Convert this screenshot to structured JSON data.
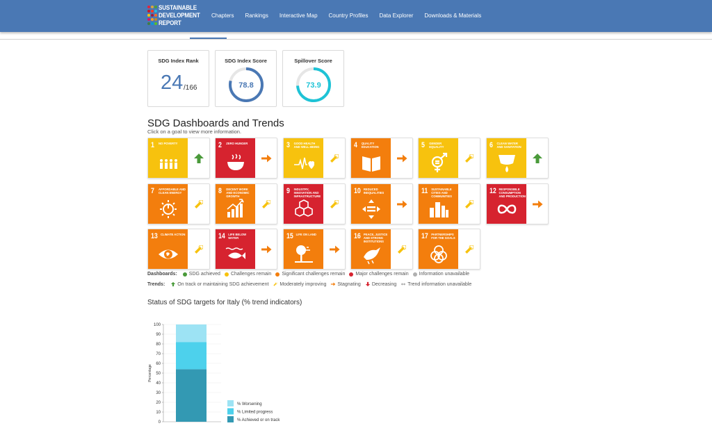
{
  "header": {
    "logo_lines": [
      "SUSTAINABLE",
      "DEVELOPMENT",
      "REPORT"
    ],
    "nav": [
      "Chapters",
      "Rankings",
      "Interactive Map",
      "Country Profiles",
      "Data Explorer",
      "Downloads & Materials"
    ]
  },
  "score_cards": {
    "rank": {
      "title": "SDG Index Rank",
      "value": "24",
      "total": "/166"
    },
    "index": {
      "title": "SDG Index Score",
      "value": "78.8",
      "fraction": 0.788,
      "color": "#4a78b4"
    },
    "spillover": {
      "title": "Spillover Score",
      "value": "73.9",
      "fraction": 0.739,
      "color": "#1ec3d6"
    }
  },
  "dashboards": {
    "title": "SDG Dashboards and Trends",
    "subtitle": "Click on a goal to view more information.",
    "goals": [
      {
        "num": "1",
        "name": "NO POVERTY",
        "color": "#e5243b",
        "tile": "#f7c20e",
        "trend": "up",
        "icon": "people-icon"
      },
      {
        "num": "2",
        "name": "ZERO HUNGER",
        "color": "#dda63a",
        "tile": "#d6232f",
        "trend": "stagnating",
        "icon": "bowl-icon"
      },
      {
        "num": "3",
        "name": "GOOD HEALTH AND WELL-BEING",
        "tile": "#f7c20e",
        "trend": "moderate",
        "icon": "heartbeat-icon"
      },
      {
        "num": "4",
        "name": "QUALITY EDUCATION",
        "tile": "#f37e0d",
        "trend": "stagnating",
        "icon": "book-icon"
      },
      {
        "num": "5",
        "name": "GENDER EQUALITY",
        "tile": "#f7c20e",
        "trend": "moderate",
        "icon": "gender-icon"
      },
      {
        "num": "6",
        "name": "CLEAN WATER AND SANITATION",
        "tile": "#f7c20e",
        "trend": "up",
        "icon": "water-icon"
      },
      {
        "num": "7",
        "name": "AFFORDABLE AND CLEAN ENERGY",
        "tile": "#f37e0d",
        "trend": "moderate",
        "icon": "power-icon"
      },
      {
        "num": "8",
        "name": "DECENT WORK AND ECONOMIC GROWTH",
        "tile": "#f37e0d",
        "trend": "moderate",
        "icon": "growth-icon"
      },
      {
        "num": "9",
        "name": "INDUSTRY, INNOVATION AND INFRASTRUCTURE",
        "tile": "#d6232f",
        "trend": "moderate",
        "icon": "cubes-icon"
      },
      {
        "num": "10",
        "name": "REDUCED INEQUALITIES",
        "tile": "#f37e0d",
        "trend": "stagnating",
        "icon": "equality-icon"
      },
      {
        "num": "11",
        "name": "SUSTAINABLE CITIES AND COMMUNITIES",
        "tile": "#f37e0d",
        "trend": "moderate",
        "icon": "city-icon"
      },
      {
        "num": "12",
        "name": "RESPONSIBLE CONSUMPTION AND PRODUCTION",
        "tile": "#d6232f",
        "trend": "stagnating",
        "icon": "infinity-icon"
      },
      {
        "num": "13",
        "name": "CLIMATE ACTION",
        "tile": "#f37e0d",
        "trend": "moderate",
        "icon": "eye-globe-icon"
      },
      {
        "num": "14",
        "name": "LIFE BELOW WATER",
        "tile": "#d6232f",
        "trend": "stagnating",
        "icon": "fish-icon"
      },
      {
        "num": "15",
        "name": "LIFE ON LAND",
        "tile": "#f37e0d",
        "trend": "stagnating",
        "icon": "tree-icon"
      },
      {
        "num": "16",
        "name": "PEACE, JUSTICE AND STRONG INSTITUTIONS",
        "tile": "#f37e0d",
        "trend": "moderate",
        "icon": "dove-icon"
      },
      {
        "num": "17",
        "name": "PARTNERSHIPS FOR THE GOALS",
        "tile": "#f37e0d",
        "trend": "moderate",
        "icon": "rings-icon"
      }
    ]
  },
  "legend": {
    "dashboards_label": "Dashboards:",
    "dashboards": [
      {
        "label": "SDG achieved",
        "color": "#4a9a3a"
      },
      {
        "label": "Challenges remain",
        "color": "#f7c20e"
      },
      {
        "label": "Significant challenges remain",
        "color": "#f37e0d"
      },
      {
        "label": "Major challenges remain",
        "color": "#d6232f"
      },
      {
        "label": "Information unavailable",
        "color": "#b0b0b0"
      }
    ],
    "trends_label": "Trends:",
    "trends": [
      {
        "label": "On track or maintaining SDG achievement",
        "kind": "up",
        "color": "#4a9a3a"
      },
      {
        "label": "Moderately improving",
        "kind": "moderate",
        "color": "#f7c20e"
      },
      {
        "label": "Stagnating",
        "kind": "stagnating",
        "color": "#f37e0d"
      },
      {
        "label": "Decreasing",
        "kind": "down",
        "color": "#d6232f"
      },
      {
        "label": "Trend information unavailable",
        "kind": "na",
        "color": "#999999"
      }
    ]
  },
  "chart_title": "Status of SDG targets for Italy (% trend indicators)",
  "chart_data": {
    "type": "bar",
    "stacked": true,
    "categories": [
      ""
    ],
    "ylabel": "Percentage",
    "ylim": [
      0,
      100
    ],
    "yticks": [
      "0",
      "10",
      "20",
      "30",
      "40",
      "50",
      "60",
      "70",
      "80",
      "90",
      "100"
    ],
    "series": [
      {
        "name": "% Achieved or on track",
        "values": [
          54
        ],
        "color": "#3399b3"
      },
      {
        "name": "% Limited progress",
        "values": [
          28
        ],
        "color": "#4dd1ec"
      },
      {
        "name": "% Worsening",
        "values": [
          18
        ],
        "color": "#9de3f4"
      }
    ],
    "legend_position": "bottom-right"
  }
}
